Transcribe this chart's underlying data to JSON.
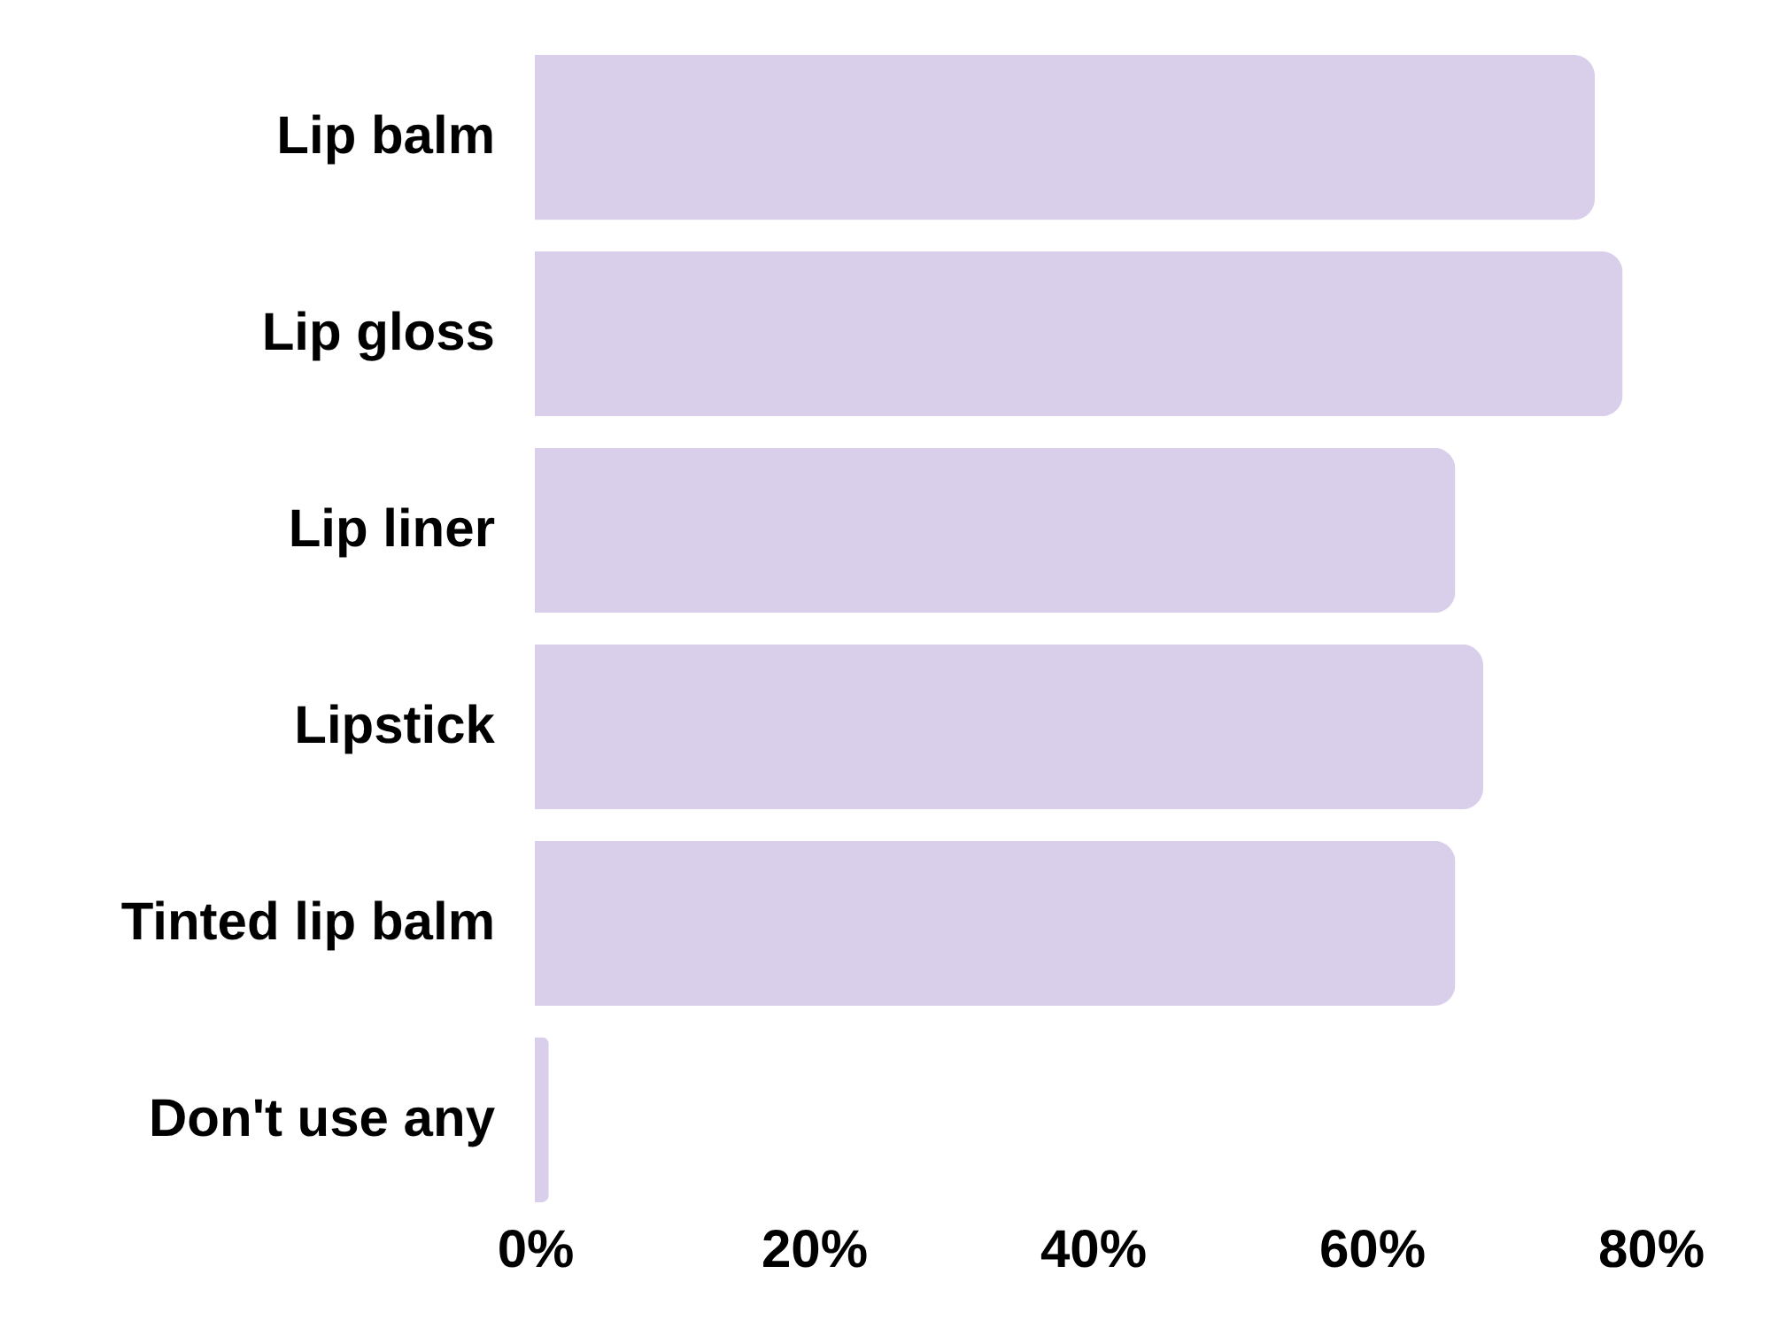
{
  "chart_data": {
    "type": "bar",
    "orientation": "horizontal",
    "categories": [
      "Lip balm",
      "Lip gloss",
      "Lip liner",
      "Lipstick",
      "Tinted lip balm",
      "Don't use any"
    ],
    "values": [
      76,
      78,
      66,
      68,
      66,
      1
    ],
    "color": "#d9cfea",
    "xlim": [
      0,
      80
    ],
    "xticks": [
      {
        "value": 0,
        "label": "0%"
      },
      {
        "value": 20,
        "label": "20%"
      },
      {
        "value": 40,
        "label": "40%"
      },
      {
        "value": 60,
        "label": "60%"
      },
      {
        "value": 80,
        "label": "80%"
      }
    ],
    "grid": false
  }
}
